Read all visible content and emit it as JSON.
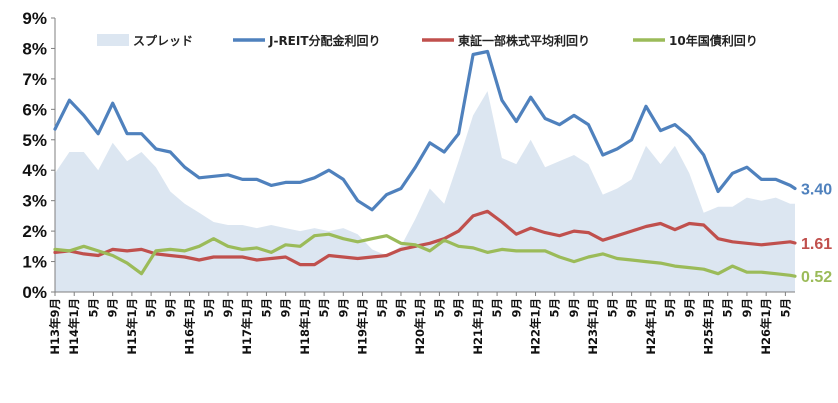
{
  "chart_data": {
    "type": "line",
    "title": "",
    "xlabel": "",
    "ylabel": "",
    "ylim": [
      0,
      9
    ],
    "y_ticks": [
      "0%",
      "1%",
      "2%",
      "3%",
      "4%",
      "5%",
      "6%",
      "7%",
      "8%",
      "9%"
    ],
    "grid": false,
    "legend_position": "top",
    "x_range": [
      "H13年9月",
      "H26年7月"
    ],
    "x_tick_labels": [
      "H13年9月",
      "H14年1月",
      "5月",
      "9月",
      "H15年1月",
      "5月",
      "9月",
      "H16年1月",
      "5月",
      "9月",
      "H17年1月",
      "5月",
      "9月",
      "H18年1月",
      "5月",
      "9月",
      "H19年1月",
      "5月",
      "9月",
      "H20年1月",
      "5月",
      "9月",
      "H21年1月",
      "5月",
      "9月",
      "H22年1月",
      "5月",
      "9月",
      "H23年1月",
      "5月",
      "9月",
      "H24年1月",
      "5月",
      "9月",
      "H25年1月",
      "5月",
      "9月",
      "H26年1月",
      "5月"
    ],
    "series": [
      {
        "name": "スプレッド",
        "type": "area",
        "color": "#dce6f1",
        "x": [
          "H13年9月",
          "H13年12月",
          "H14年3月",
          "H14年6月",
          "H14年9月",
          "H14年12月",
          "H15年3月",
          "H15年6月",
          "H15年9月",
          "H15年12月",
          "H16年3月",
          "H16年6月",
          "H16年9月",
          "H16年12月",
          "H17年3月",
          "H17年6月",
          "H17年9月",
          "H17年12月",
          "H18年3月",
          "H18年6月",
          "H18年9月",
          "H18年12月",
          "H19年3月",
          "H19年6月",
          "H19年9月",
          "H19年12月",
          "H20年3月",
          "H20年6月",
          "H20年9月",
          "H20年12月",
          "H21年3月",
          "H21年6月",
          "H21年9月",
          "H21年12月",
          "H22年3月",
          "H22年6月",
          "H22年9月",
          "H22年12月",
          "H23年3月",
          "H23年6月",
          "H23年9月",
          "H23年12月",
          "H24年3月",
          "H24年6月",
          "H24年9月",
          "H24年12月",
          "H25年3月",
          "H25年6月",
          "H25年9月",
          "H25年12月",
          "H26年3月",
          "H26年6月",
          "H26年7月"
        ],
        "values": [
          3.9,
          4.6,
          4.6,
          4.0,
          4.9,
          4.3,
          4.6,
          4.1,
          3.3,
          2.9,
          2.6,
          2.3,
          2.2,
          2.2,
          2.1,
          2.2,
          2.1,
          2.0,
          2.1,
          2.0,
          2.1,
          1.9,
          1.4,
          1.2,
          1.5,
          2.4,
          3.4,
          2.9,
          4.3,
          5.8,
          6.6,
          4.4,
          4.2,
          5.0,
          4.1,
          4.3,
          4.5,
          4.2,
          3.2,
          3.4,
          3.7,
          4.8,
          4.2,
          4.8,
          3.9,
          2.6,
          2.8,
          2.8,
          3.1,
          3.0,
          3.1,
          2.9,
          2.9
        ]
      },
      {
        "name": "J-REIT分配金利回り",
        "type": "line",
        "color": "#4f81bd",
        "end_label": "3.40",
        "x": [
          "H13年9月",
          "H13年12月",
          "H14年3月",
          "H14年6月",
          "H14年9月",
          "H14年12月",
          "H15年3月",
          "H15年6月",
          "H15年9月",
          "H15年12月",
          "H16年3月",
          "H16年6月",
          "H16年9月",
          "H16年12月",
          "H17年3月",
          "H17年6月",
          "H17年9月",
          "H17年12月",
          "H18年3月",
          "H18年6月",
          "H18年9月",
          "H18年12月",
          "H19年3月",
          "H19年6月",
          "H19年9月",
          "H19年12月",
          "H20年3月",
          "H20年6月",
          "H20年9月",
          "H20年12月",
          "H21年3月",
          "H21年6月",
          "H21年9月",
          "H21年12月",
          "H22年3月",
          "H22年6月",
          "H22年9月",
          "H22年12月",
          "H23年3月",
          "H23年6月",
          "H23年9月",
          "H23年12月",
          "H24年3月",
          "H24年6月",
          "H24年9月",
          "H24年12月",
          "H25年3月",
          "H25年6月",
          "H25年9月",
          "H25年12月",
          "H26年3月",
          "H26年6月",
          "H26年7月"
        ],
        "values": [
          5.35,
          6.3,
          5.8,
          5.2,
          6.2,
          5.2,
          5.2,
          4.7,
          4.6,
          4.1,
          3.75,
          3.8,
          3.85,
          3.7,
          3.7,
          3.5,
          3.6,
          3.6,
          3.75,
          4.0,
          3.7,
          3.0,
          2.7,
          3.2,
          3.4,
          4.1,
          4.9,
          4.6,
          5.2,
          7.8,
          7.9,
          6.3,
          5.6,
          6.4,
          5.7,
          5.5,
          5.8,
          5.5,
          4.5,
          4.7,
          5.0,
          6.1,
          5.3,
          5.5,
          5.1,
          4.5,
          3.3,
          3.9,
          4.1,
          3.7,
          3.7,
          3.5,
          3.4
        ]
      },
      {
        "name": "東証一部株式平均利回り",
        "type": "line",
        "color": "#c0504d",
        "end_label": "1.61",
        "x": [
          "H13年9月",
          "H13年12月",
          "H14年3月",
          "H14年6月",
          "H14年9月",
          "H14年12月",
          "H15年3月",
          "H15年6月",
          "H15年9月",
          "H15年12月",
          "H16年3月",
          "H16年6月",
          "H16年9月",
          "H16年12月",
          "H17年3月",
          "H17年6月",
          "H17年9月",
          "H17年12月",
          "H18年3月",
          "H18年6月",
          "H18年9月",
          "H18年12月",
          "H19年3月",
          "H19年6月",
          "H19年9月",
          "H19年12月",
          "H20年3月",
          "H20年6月",
          "H20年9月",
          "H20年12月",
          "H21年3月",
          "H21年6月",
          "H21年9月",
          "H21年12月",
          "H22年3月",
          "H22年6月",
          "H22年9月",
          "H22年12月",
          "H23年3月",
          "H23年6月",
          "H23年9月",
          "H23年12月",
          "H24年3月",
          "H24年6月",
          "H24年9月",
          "H24年12月",
          "H25年3月",
          "H25年6月",
          "H25年9月",
          "H25年12月",
          "H26年3月",
          "H26年6月",
          "H26年7月"
        ],
        "values": [
          1.3,
          1.35,
          1.25,
          1.2,
          1.4,
          1.35,
          1.4,
          1.25,
          1.2,
          1.15,
          1.05,
          1.15,
          1.15,
          1.15,
          1.05,
          1.1,
          1.15,
          0.9,
          0.9,
          1.2,
          1.15,
          1.1,
          1.15,
          1.2,
          1.4,
          1.5,
          1.6,
          1.75,
          2.0,
          2.5,
          2.65,
          2.3,
          1.9,
          2.1,
          1.95,
          1.85,
          2.0,
          1.95,
          1.7,
          1.85,
          2.0,
          2.15,
          2.25,
          2.05,
          2.25,
          2.2,
          1.75,
          1.65,
          1.6,
          1.55,
          1.6,
          1.65,
          1.61
        ]
      },
      {
        "name": "10年国債利回り",
        "type": "line",
        "color": "#9bbb59",
        "end_label": "0.52",
        "x": [
          "H13年9月",
          "H13年12月",
          "H14年3月",
          "H14年6月",
          "H14年9月",
          "H14年12月",
          "H15年3月",
          "H15年6月",
          "H15年9月",
          "H15年12月",
          "H16年3月",
          "H16年6月",
          "H16年9月",
          "H16年12月",
          "H17年3月",
          "H17年6月",
          "H17年9月",
          "H17年12月",
          "H18年3月",
          "H18年6月",
          "H18年9月",
          "H18年12月",
          "H19年3月",
          "H19年6月",
          "H19年9月",
          "H19年12月",
          "H20年3月",
          "H20年6月",
          "H20年9月",
          "H20年12月",
          "H21年3月",
          "H21年6月",
          "H21年9月",
          "H21年12月",
          "H22年3月",
          "H22年6月",
          "H22年9月",
          "H22年12月",
          "H23年3月",
          "H23年6月",
          "H23年9月",
          "H23年12月",
          "H24年3月",
          "H24年6月",
          "H24年9月",
          "H24年12月",
          "H25年3月",
          "H25年6月",
          "H25年9月",
          "H25年12月",
          "H26年3月",
          "H26年6月",
          "H26年7月"
        ],
        "values": [
          1.4,
          1.35,
          1.5,
          1.35,
          1.2,
          0.95,
          0.6,
          1.35,
          1.4,
          1.35,
          1.5,
          1.75,
          1.5,
          1.4,
          1.45,
          1.3,
          1.55,
          1.5,
          1.85,
          1.9,
          1.75,
          1.65,
          1.75,
          1.85,
          1.6,
          1.55,
          1.35,
          1.7,
          1.5,
          1.45,
          1.3,
          1.4,
          1.35,
          1.35,
          1.35,
          1.15,
          1.0,
          1.15,
          1.25,
          1.1,
          1.05,
          1.0,
          0.95,
          0.85,
          0.8,
          0.75,
          0.6,
          0.85,
          0.65,
          0.65,
          0.6,
          0.55,
          0.52
        ]
      }
    ]
  }
}
